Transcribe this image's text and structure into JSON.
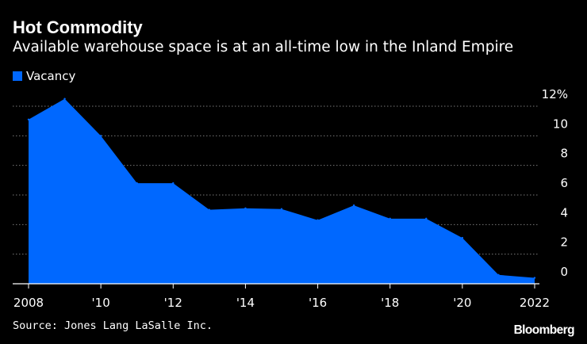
{
  "chart_data": {
    "type": "area",
    "title": "Hot Commodity",
    "subtitle": "Available warehouse space is at an all-time low in the Inland Empire",
    "legend": [
      {
        "name": "Vacancy",
        "color": "#0068ff"
      }
    ],
    "x": [
      2008,
      2009,
      2010,
      2011,
      2012,
      2013,
      2014,
      2015,
      2016,
      2017,
      2018,
      2019,
      2020,
      2021,
      2022
    ],
    "series": [
      {
        "name": "Vacancy",
        "values": [
          11.1,
          12.5,
          10.0,
          6.8,
          6.8,
          5.0,
          5.1,
          5.05,
          4.3,
          5.3,
          4.4,
          4.4,
          3.1,
          0.6,
          0.4
        ]
      }
    ],
    "xlim": [
      2008,
      2022
    ],
    "ylim": [
      0,
      12
    ],
    "xticks": [
      {
        "value": 2008,
        "label": "2008"
      },
      {
        "value": 2010,
        "label": "'10"
      },
      {
        "value": 2012,
        "label": "'12"
      },
      {
        "value": 2014,
        "label": "'14"
      },
      {
        "value": 2016,
        "label": "'16"
      },
      {
        "value": 2018,
        "label": "'18"
      },
      {
        "value": 2020,
        "label": "'20"
      },
      {
        "value": 2022,
        "label": "2022"
      }
    ],
    "yticks": [
      {
        "value": 12,
        "label": "12%"
      },
      {
        "value": 10,
        "label": "10"
      },
      {
        "value": 8,
        "label": "8"
      },
      {
        "value": 6,
        "label": "6"
      },
      {
        "value": 4,
        "label": "4"
      },
      {
        "value": 2,
        "label": "2"
      },
      {
        "value": 0,
        "label": "0"
      }
    ],
    "grid": true,
    "yaxis_side": "right",
    "source": "Source: Jones Lang LaSalle Inc.",
    "brand": "Bloomberg"
  },
  "colors": {
    "background": "#000000",
    "area": "#0068ff",
    "text": "#ffffff",
    "grid": "#777777"
  }
}
